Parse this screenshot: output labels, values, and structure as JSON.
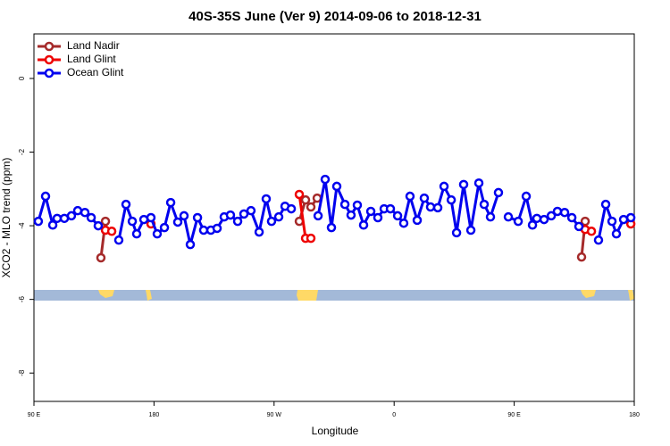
{
  "chart_data": {
    "type": "line",
    "title": "40S-35S June (Ver 9)   2014-09-06 to 2018-12-31",
    "x_label": "Longitude",
    "y_label": "XCO2 - MLO trend (ppm)",
    "xlim": [
      90,
      540
    ],
    "ylim": [
      -8.77,
      1.21
    ],
    "xticks": [
      {
        "value": 90,
        "label": "90 E"
      },
      180,
      {
        "value": 270,
        "label": "90 W"
      },
      {
        "value": 360,
        "label": "0"
      },
      {
        "value": 450,
        "label": "90 E"
      },
      {
        "value": 540,
        "label": "180"
      }
    ],
    "yticks": [
      0,
      -2,
      -4,
      -6,
      -8
    ],
    "legend": "top-left",
    "series": [
      {
        "name": "Land Nadir",
        "color": "#a52a2a",
        "x": [
          140.2,
          143.6,
          null,
          288.9,
          293.6,
          297.6,
          302.3,
          null,
          500.5,
          503.2
        ],
        "values": [
          -4.87,
          -3.88,
          null,
          -3.88,
          -3.3,
          -3.49,
          -3.25,
          null,
          -4.85,
          -3.88
        ]
      },
      {
        "name": "Land Glint",
        "color": "#ee0000",
        "x": [
          143.6,
          148.3,
          null,
          177.7,
          null,
          288.9,
          293.6,
          297.6,
          null,
          503.2,
          507.9,
          null,
          537.4
        ],
        "values": [
          -4.12,
          -4.15,
          null,
          -3.95,
          null,
          -3.15,
          -4.34,
          -4.34,
          null,
          -4.1,
          -4.15,
          null,
          -3.95
        ]
      },
      {
        "name": "Ocean Glint",
        "color": "#0000ee",
        "x": [
          93.3,
          98.7,
          104.1,
          107.4,
          112.8,
          118.1,
          122.8,
          128.2,
          132.9,
          138.2,
          null,
          153.6,
          159.0,
          163.7,
          167.0,
          172.4,
          177.7,
          182.4,
          187.8,
          192.5,
          197.8,
          202.5,
          207.2,
          212.6,
          217.2,
          222.6,
          227.3,
          232.6,
          237.3,
          242.7,
          247.4,
          252.7,
          258.8,
          264.1,
          268.1,
          273.5,
          278.2,
          282.9,
          null,
          303.0,
          308.3,
          313.0,
          317.0,
          323.1,
          327.7,
          332.4,
          337.1,
          342.5,
          347.8,
          352.5,
          357.2,
          362.6,
          367.2,
          371.9,
          377.3,
          382.6,
          387.3,
          392.7,
          397.4,
          402.8,
          406.8,
          412.1,
          417.5,
          423.5,
          427.5,
          432.2,
          438.2,
          null,
          445.6,
          453.0,
          459.0,
          463.7,
          467.0,
          472.4,
          477.8,
          482.4,
          487.8,
          493.2,
          498.5,
          null,
          513.2,
          518.6,
          523.3,
          526.6,
          532.0,
          537.4
        ],
        "values": [
          -3.88,
          -3.2,
          -3.98,
          -3.8,
          -3.8,
          -3.73,
          -3.59,
          -3.64,
          -3.78,
          -4.0,
          null,
          -4.39,
          -3.42,
          -3.88,
          -4.22,
          -3.83,
          -3.78,
          -4.22,
          -4.05,
          -3.37,
          -3.9,
          -3.73,
          -4.51,
          -3.78,
          -4.12,
          -4.12,
          -4.07,
          -3.76,
          -3.71,
          -3.88,
          -3.68,
          -3.59,
          -4.17,
          -3.27,
          -3.88,
          -3.76,
          -3.47,
          -3.54,
          null,
          -3.73,
          -2.74,
          -4.05,
          -2.93,
          -3.42,
          -3.71,
          -3.44,
          -3.98,
          -3.61,
          -3.78,
          -3.54,
          -3.54,
          -3.73,
          -3.93,
          -3.2,
          -3.85,
          -3.25,
          -3.49,
          -3.51,
          -2.93,
          -3.3,
          -4.19,
          -2.88,
          -4.12,
          -2.84,
          -3.42,
          -3.76,
          -3.1,
          null,
          -3.76,
          -3.88,
          -3.2,
          -3.98,
          -3.8,
          -3.83,
          -3.73,
          -3.61,
          -3.64,
          -3.78,
          -4.02,
          null,
          -4.39,
          -3.42,
          -3.88,
          -4.22,
          -3.83,
          -3.78
        ]
      }
    ]
  }
}
